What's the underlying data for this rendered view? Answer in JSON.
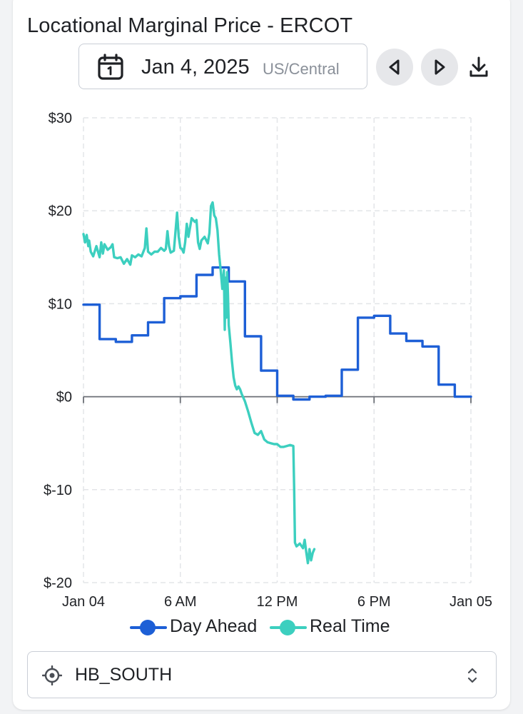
{
  "title": "Locational Marginal Price - ERCOT",
  "date_picker": {
    "date": "Jan 4, 2025",
    "timezone": "US/Central",
    "icon": "calendar-icon"
  },
  "controls": {
    "prev_icon": "triangle-left-icon",
    "next_icon": "triangle-right-icon",
    "download_icon": "download-icon"
  },
  "colors": {
    "day_ahead": "#1d5fd6",
    "real_time": "#3ccfbf",
    "zero_line": "#6b6f76",
    "grid": "#e3e5e8"
  },
  "location_select": {
    "value": "HB_SOUTH",
    "icon": "location-target-icon",
    "chevron_icon": "chevron-updown-icon"
  },
  "chart_data": {
    "type": "line",
    "title": "",
    "xlabel": "",
    "ylabel": "",
    "x_unit": "hours since start of Jan 04",
    "xlim": [
      0,
      24
    ],
    "ylim": [
      -20,
      30
    ],
    "x_ticks": [
      {
        "x": 0,
        "label": "Jan 04"
      },
      {
        "x": 6,
        "label": "6 AM"
      },
      {
        "x": 12,
        "label": "12 PM"
      },
      {
        "x": 18,
        "label": "6 PM"
      },
      {
        "x": 24,
        "label": "Jan 05"
      }
    ],
    "y_ticks": [
      {
        "y": 30,
        "label": "$30"
      },
      {
        "y": 20,
        "label": "$20"
      },
      {
        "y": 10,
        "label": "$10"
      },
      {
        "y": 0,
        "label": "$0"
      },
      {
        "y": -10,
        "label": "$-10"
      },
      {
        "y": -20,
        "label": "$-20"
      }
    ],
    "grid": true,
    "legend_position": "bottom",
    "series": [
      {
        "name": "Day Ahead",
        "step": true,
        "x": [
          0,
          1,
          2,
          3,
          4,
          5,
          6,
          7,
          8,
          9,
          10,
          11,
          12,
          13,
          14,
          15,
          16,
          17,
          18,
          19,
          20,
          21,
          22,
          23,
          24
        ],
        "values": [
          9.9,
          6.2,
          5.9,
          6.6,
          8.0,
          10.6,
          10.8,
          13.1,
          13.9,
          12.4,
          6.5,
          2.8,
          0.1,
          -0.3,
          0.0,
          0.1,
          2.9,
          8.5,
          8.7,
          6.8,
          6.0,
          5.4,
          1.3,
          0.0,
          0.0
        ]
      },
      {
        "name": "Real Time",
        "step": false,
        "x": [
          0,
          0.1,
          0.2,
          0.3,
          0.35,
          0.45,
          0.6,
          0.8,
          1.0,
          1.1,
          1.2,
          1.3,
          1.5,
          1.7,
          1.8,
          1.9,
          2.1,
          2.3,
          2.5,
          2.7,
          2.9,
          3.0,
          3.2,
          3.4,
          3.6,
          3.8,
          3.9,
          4.0,
          4.2,
          4.4,
          4.6,
          4.8,
          5.0,
          5.1,
          5.2,
          5.3,
          5.4,
          5.6,
          5.8,
          5.9,
          6.0,
          6.1,
          6.2,
          6.3,
          6.4,
          6.5,
          6.7,
          6.9,
          7.0,
          7.1,
          7.2,
          7.3,
          7.5,
          7.7,
          7.8,
          7.9,
          8.0,
          8.1,
          8.2,
          8.3,
          8.4,
          8.5,
          8.6,
          8.7,
          8.75,
          8.8,
          8.85,
          8.9,
          8.95,
          9.0,
          9.1,
          9.2,
          9.3,
          9.4,
          9.5,
          9.6,
          9.7,
          9.8,
          10.0,
          10.2,
          10.4,
          10.6,
          10.8,
          11.0,
          11.2,
          11.4,
          11.6,
          11.8,
          12.0,
          12.2,
          12.4,
          12.6,
          12.8,
          13.0,
          13.05,
          13.1,
          13.2,
          13.4,
          13.6,
          13.7,
          13.8,
          13.9,
          14.0,
          14.1,
          14.2,
          14.3
        ],
        "values": [
          17.5,
          16.6,
          17.4,
          16.2,
          16.8,
          15.6,
          15.1,
          16.2,
          15.0,
          16.6,
          15.4,
          16.4,
          15.8,
          16.1,
          16.4,
          15.0,
          14.9,
          15.0,
          14.3,
          14.8,
          14.2,
          15.2,
          15.0,
          15.3,
          15.1,
          16.0,
          18.1,
          15.6,
          15.3,
          15.6,
          15.6,
          16.0,
          15.7,
          15.9,
          17.8,
          16.2,
          15.5,
          15.7,
          19.8,
          17.2,
          16.0,
          15.9,
          15.5,
          16.6,
          18.6,
          17.2,
          19.2,
          18.8,
          19.0,
          16.6,
          15.9,
          16.8,
          17.2,
          16.5,
          17.6,
          20.5,
          20.9,
          19.5,
          19.2,
          17.9,
          15.3,
          13.6,
          11.6,
          13.6,
          7.2,
          12.8,
          8.5,
          13.4,
          11.0,
          7.7,
          5.8,
          3.8,
          2.1,
          1.2,
          0.8,
          1.1,
          0.8,
          0.3,
          -0.5,
          -1.6,
          -2.8,
          -3.9,
          -4.1,
          -3.7,
          -4.6,
          -4.9,
          -5.0,
          -5.1,
          -5.1,
          -5.4,
          -5.4,
          -5.3,
          -5.2,
          -5.3,
          -10.0,
          -15.7,
          -16.1,
          -15.8,
          -16.3,
          -15.4,
          -16.7,
          -17.9,
          -16.4,
          -17.6,
          -16.8,
          -16.4
        ]
      }
    ]
  }
}
